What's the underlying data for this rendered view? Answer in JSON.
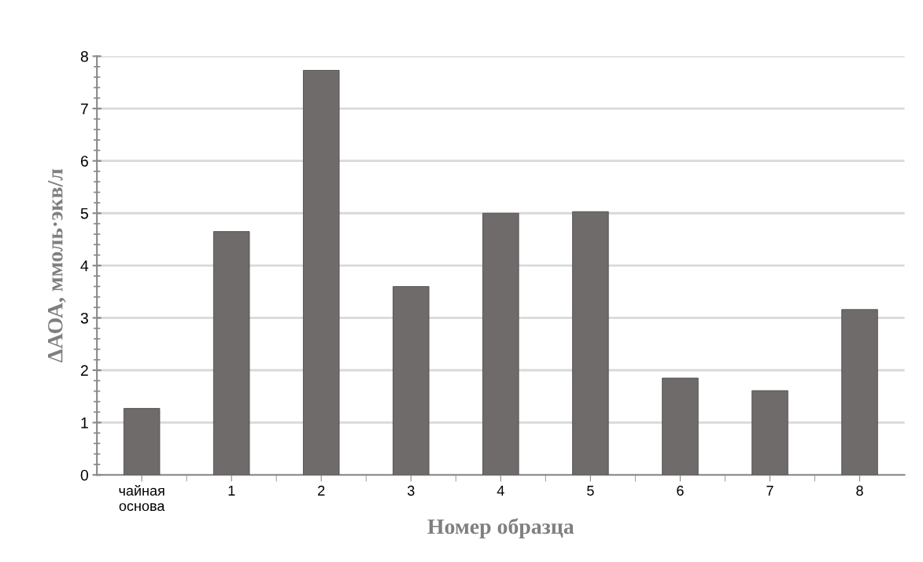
{
  "chart_data": {
    "type": "bar",
    "categories": [
      "чайная\nоснова",
      "1",
      "2",
      "3",
      "4",
      "5",
      "6",
      "7",
      "8"
    ],
    "values": [
      1.27,
      4.65,
      7.73,
      3.6,
      5.0,
      5.03,
      1.85,
      1.61,
      3.16
    ],
    "color": "#6f6b6b",
    "xlabel": "Номер образца",
    "ylabel": "ΔАОА, ммоль·экв/л",
    "ylim": [
      0,
      8
    ],
    "yticks": [
      0,
      1,
      2,
      3,
      4,
      5,
      6,
      7,
      8
    ],
    "grid": "y"
  }
}
